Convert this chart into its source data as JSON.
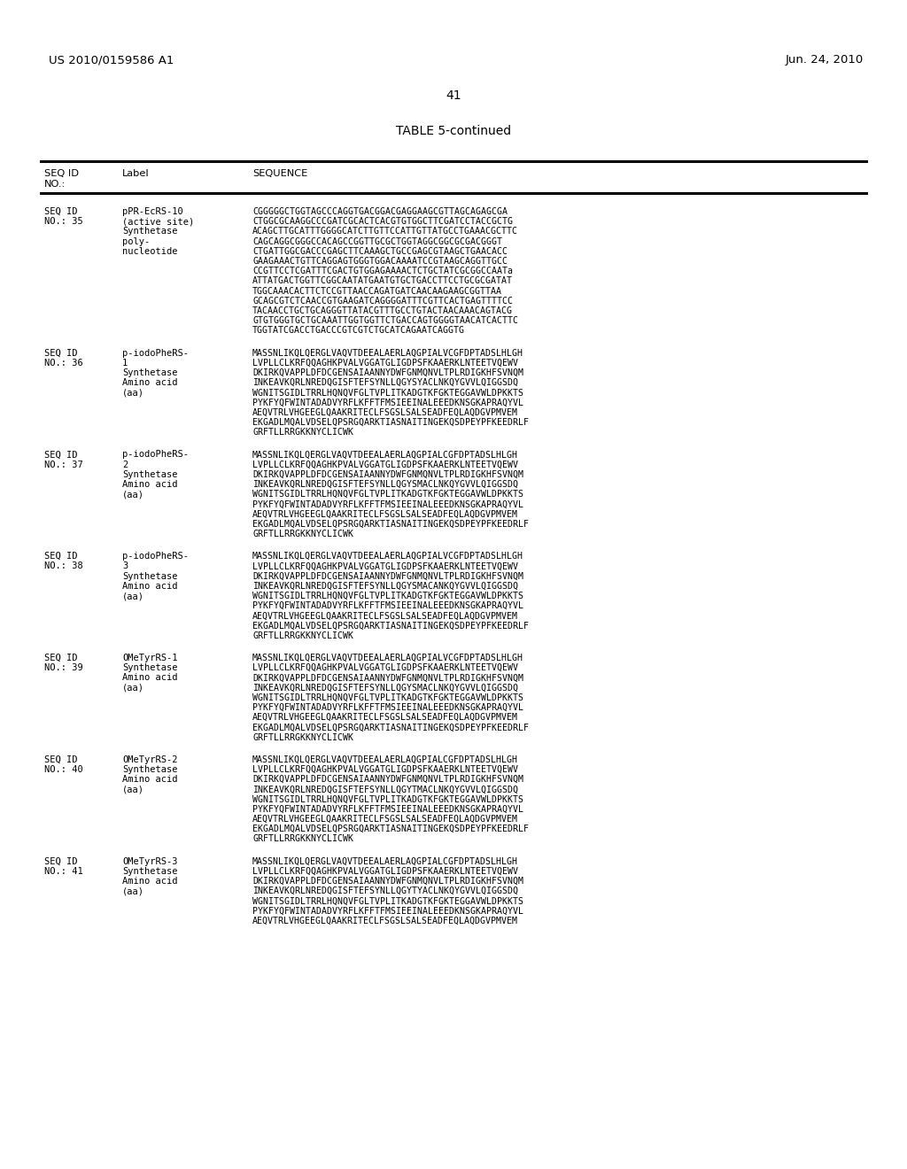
{
  "header_left": "US 2010/0159586 A1",
  "header_right": "Jun. 24, 2010",
  "page_number": "41",
  "table_title": "TABLE 5-continued",
  "background_color": "#ffffff",
  "text_color": "#000000",
  "entries": [
    {
      "seq_id": "SEQ ID\nNO.: 35",
      "label": "pPR-EcRS-10\n(active site)\nSynthetase\npoly-\nnucleotide",
      "sequence": "CGGGGGCTGGTAGCCCAGGTGACGGACGAGGAAGCGTTAGCAGAGCGA\nCTGGCGCAAGGCCCGATCGCACTCACGTGTGGCTTCGATCCTACCGCTG\nACAGCTTGCATTTGGGGCATCTTGTTCCATTGTTATGCCTGAAACGCTTC\nCAGCAGGCGGGCCACAGCCGGTTGCGCTGGTAGGCGGCGCGACGGGT\nCTGATTGGCGACCCGAGCTTCAAAGCTGCCGAGCGTAAGCTGAACACC\nGAAGAAACTGTTCAGGAGTGGGTGGACAAAATCCGTAAGCAGGTTGCC\nCCGTTCCTCGATTTCGACTGTGGAGAAAACTCTGCTATCGCGGCCAATa\nATTATGACTGGTTCGGCAATATGAATGTGCTGACCTTCCTGCGCGATAT\nTGGCAAACACTTCTCCGTTAACCAGATGATCAACAAGAAGCGGTTAA\nGCAGCGTCTCAACCGTGAAGATCAGGGGATTTCGTTCACTGAGTTTTCC\nTACAACCTGCTGCAGGGTTATACGTTTGCCTGTACTAACAAACAGTACG\nGTGTGGGTGCTGCAAATTGGTGGTTCTGACCAGTGGGGTAACATCACTTC\nTGGTATCGACCTGACCCGTCGTCTGCATCAGAATCAGGTG"
    },
    {
      "seq_id": "SEQ ID\nNO.: 36",
      "label": "p-iodoPheRS-\n1\nSynthetase\nAmino acid\n(aa)",
      "sequence": "MASSNLIKQLQERGLVAQVTDEEALAERLAQGPIALVCGFDPTADSLHLGH\nLVPLLCLKRFQQAGHKPVALVGGATGLIGDPSFKAAERKLNTEETVQEWV\nDKIRKQVAPPLDFDCGENSAIAANNYDWFGNMQNVLTPLRDIGKHFSVNQM\nINKEAVKQRLNREDQGISFTEFSYNLLQGYSYACLNKQYGVVLQIGGSDQ\nWGNITSGIDLTRRLHQNQVFGLTVPLITKADGTKFGKTEGGAVWLDPKKTS\nPYKFYQFWINTADADVYRFLKFFTFMSIEEINALEEEDKNSGKAPRAQYVL\nAEQVTRLVHGEEGLQAAKRITECLFSGSLSALSEADFEQLAQDGVPMVEM\nEKGADLMQALVDSELQPSRGQARKTIASNAITINGEKQSDPEYPFKEEDRLF\nGRFTLLRRGKKNYCLICWK"
    },
    {
      "seq_id": "SEQ ID\nNO.: 37",
      "label": "p-iodoPheRS-\n2\nSynthetase\nAmino acid\n(aa)",
      "sequence": "MASSNLIKQLQERGLVAQVTDEEALAERLAQGPIALCGFDPTADSLHLGH\nLVPLLCLKRFQQAGHKPVALVGGATGLIGDPSFKAAERKLNTEETVQEWV\nDKIRKQVAPPLDFDCGENSAIAANNYDWFGNMQNVLTPLRDIGKHFSVNQM\nINKEAVKQRLNREDQGISFTEFSYNLLQGYSMACLNKQYGVVLQIGGSDQ\nWGNITSGIDLTRRLHQNQVFGLTVPLITKADGTKFGKTEGGAVWLDPKKTS\nPYKFYQFWINTADADVYRFLKFFTFMSIEEINALEEEDKNSGKAPRAQYVL\nAEQVTRLVHGEEGLQAAKRITECLFSGSLSALSEADFEQLAQDGVPMVEM\nEKGADLMQALVDSELQPSRGQARKTIASNAITINGEKQSDPEYPFKEEDRLF\nGRFTLLRRGKKNYCLICWK"
    },
    {
      "seq_id": "SEQ ID\nNO.: 38",
      "label": "p-iodoPheRS-\n3\nSynthetase\nAmino acid\n(aa)",
      "sequence": "MASSNLIKQLQERGLVAQVTDEEALAERLAQGPIALVCGFDPTADSLHLGH\nLVPLLCLKRFQQAGHKPVALVGGATGLIGDPSFKAAERKLNTEETVQEWV\nDKIRKQVAPPLDFDCGENSAIAANNYDWFGNMQNVLTPLRDIGKHFSVNQM\nINKEAVKQRLNREDQGISFTEFSYNLLQGYSMACANKQYGVVLQIGGSDQ\nWGNITSGIDLTRRLHQNQVFGLTVPLITKADGTKFGKTEGGAVWLDPKKTS\nPYKFYQFWINTADADVYRFLKFFTFMSIEEINALEEEDKNSGKAPRAQYVL\nAEQVTRLVHGEEGLQAAKRITECLFSGSLSALSEADFEQLAQDGVPMVEM\nEKGADLMQALVDSELQPSRGQARKTIASNAITINGEKQSDPEYPFKEEDRLF\nGRFTLLRRGKKNYCLICWK"
    },
    {
      "seq_id": "SEQ ID\nNO.: 39",
      "label": "OMeTyrRS-1\nSynthetase\nAmino acid\n(aa)",
      "sequence": "MASSNLIKQLQERGLVAQVTDEEALAERLAQGPIALVCGFDPTADSLHLGH\nLVPLLCLKRFQQAGHKPVALVGGATGLIGDPSFKAAERKLNTEETVQEWV\nDKIRKQVAPPLDFDCGENSAIAANNYDWFGNMQNVLTPLRDIGKHFSVNQM\nINKEAVKQRLNREDQGISFTEFSYNLLQGYSMACLNKQYGVVLQIGGSDQ\nWGNITSGIDLTRRLHQNQVFGLTVPLITKADGTKFGKTEGGAVWLDPKKTS\nPYKFYQFWINTADADVYRFLKFFTFMSIEEINALEEEDKNSGKAPRAQYVL\nAEQVTRLVHGEEGLQAAKRITECLFSGSLSALSEADFEQLAQDGVPMVEM\nEKGADLMQALVDSELQPSRGQARKTIASNAITINGEKQSDPEYPFKEEDRLF\nGRFTLLRRGKKNYCLICWK"
    },
    {
      "seq_id": "SEQ ID\nNO.: 40",
      "label": "OMeTyrRS-2\nSynthetase\nAmino acid\n(aa)",
      "sequence": "MASSNLIKQLQERGLVAQVTDEEALAERLAQGPIALCGFDPTADSLHLGH\nLVPLLCLKRFQQAGHKPVALVGGATGLIGDPSFKAAERKLNTEETVQEWV\nDKIRKQVAPPLDFDCGENSAIAANNYDWFGNMQNVLTPLRDIGKHFSVNQM\nINKEAVKQRLNREDQGISFTEFSYNLLQGYTMACLNKQYGVVLQIGGSDQ\nWGNITSGIDLTRRLHQNQVFGLTVPLITKADGTKFGKTEGGAVWLDPKKTS\nPYKFYQFWINTADADVYRFLKFFTFMSIEEINALEEEDKNSGKAPRAQYVL\nAEQVTRLVHGEEGLQAAKRITECLFSGSLSALSEADFEQLAQDGVPMVEM\nEKGADLMQALVDSELQPSRGQARKTIASNAITINGEKQSDPEYPFKEEDRLF\nGRFTLLRRGKKNYCLICWK"
    },
    {
      "seq_id": "SEQ ID\nNO.: 41",
      "label": "OMeTyrRS-3\nSynthetase\nAmino acid\n(aa)",
      "sequence": "MASSNLIKQLQERGLVAQVTDEEALAERLAQGPIALCGFDPTADSLHLGH\nLVPLLCLKRFQQAGHKPVALVGGATGLIGDPSFKAAERKLNTEETVQEWV\nDKIRKQVAPPLDFDCGENSAIAANNYDWFGNMQNVLTPLRDIGKHFSVNQM\nINKEAVKQRLNREDQGISFTEFSYNLLQGYTYACLNKQYGVVLQIGGSDQ\nWGNITSGIDLTRRLHQNQVFGLTVPLITKADGTKFGKTEGGAVWLDPKKTS\nPYKFYQFWINTADADVYRFLKFFTFMSIEEINALEEEDKNSGKAPRAQYVL\nAEQVTRLVHGEEGLQAAKRITECLFSGSLSALSEADFEQLAQDGVPMVEM"
    }
  ]
}
